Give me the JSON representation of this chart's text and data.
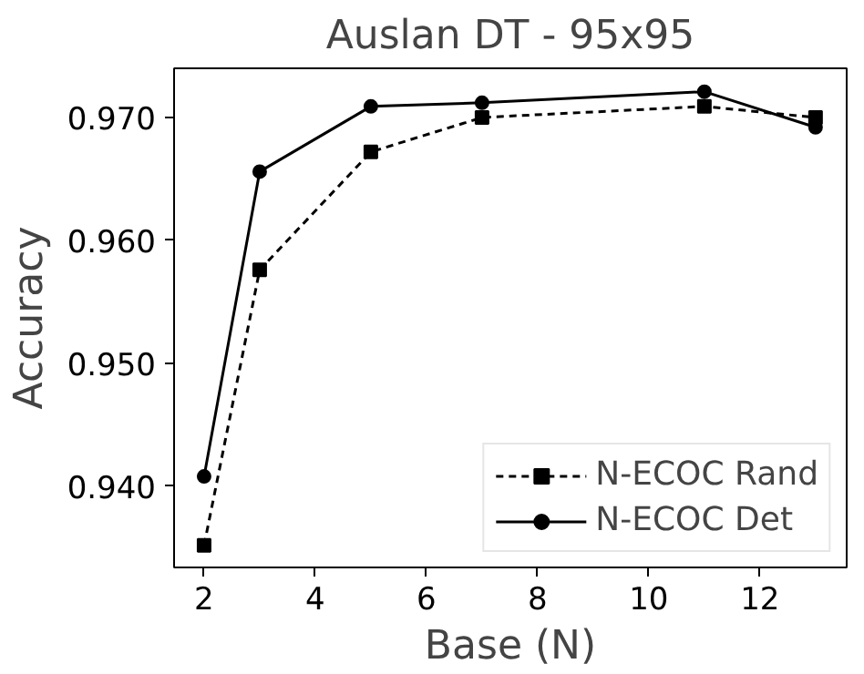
{
  "chart_data": {
    "type": "line",
    "title": "Auslan DT - 95x95",
    "xlabel": "Base (N)",
    "ylabel": "Accuracy",
    "x": [
      2,
      3,
      5,
      7,
      11,
      13
    ],
    "series": [
      {
        "name": "N-ECOC Rand",
        "color": "#000000",
        "values": [
          0.9352,
          0.9576,
          0.9672,
          0.97,
          0.9709,
          0.97
        ],
        "marker": "square",
        "line_style": "dashed"
      },
      {
        "name": "N-ECOC Det",
        "color": "#000000",
        "values": [
          0.9408,
          0.9656,
          0.9709,
          0.9712,
          0.9721,
          0.9692
        ],
        "marker": "circle",
        "line_style": "solid"
      }
    ],
    "xlim": [
      1.46,
      13.56
    ],
    "ylim": [
      0.9334,
      0.974
    ],
    "xticks": [
      2,
      4,
      6,
      8,
      10,
      12
    ],
    "yticks": [
      {
        "value": 0.94,
        "label": "0.940"
      },
      {
        "value": 0.95,
        "label": "0.950"
      },
      {
        "value": 0.96,
        "label": "0.960"
      },
      {
        "value": 0.97,
        "label": "0.970"
      }
    ],
    "grid": false,
    "legend": "bottom right"
  }
}
